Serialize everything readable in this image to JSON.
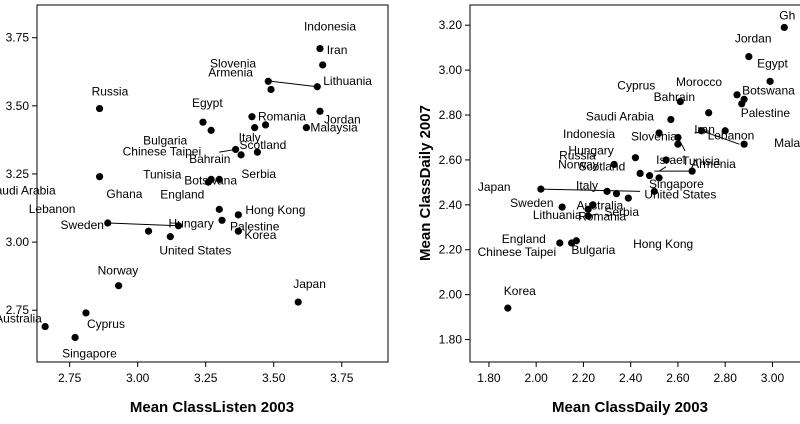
{
  "chart_data": [
    {
      "type": "scatter",
      "xlabel": "Mean ClassListen 2003",
      "ylabel": "",
      "xlim": [
        2.63,
        3.92
      ],
      "ylim": [
        2.56,
        3.87
      ],
      "xticks": [
        "2.75",
        "3.00",
        "3.25",
        "3.50",
        "3.75"
      ],
      "yticks": [
        "2.75",
        "3.00",
        "3.25",
        "3.50",
        "3.75"
      ],
      "grid": false,
      "points": [
        {
          "label": "Indonesia",
          "x": 3.67,
          "y": 3.71
        },
        {
          "label": "Iran",
          "x": 3.68,
          "y": 3.65
        },
        {
          "label": "Slovenia",
          "x": 3.49,
          "y": 3.56
        },
        {
          "label": "Armenia",
          "x": 3.48,
          "y": 3.59
        },
        {
          "label": "Lithuania",
          "x": 3.66,
          "y": 3.57
        },
        {
          "label": "Jordan",
          "x": 3.67,
          "y": 3.48
        },
        {
          "label": "Russia",
          "x": 2.86,
          "y": 3.49
        },
        {
          "label": "Egypt",
          "x": 3.24,
          "y": 3.44
        },
        {
          "label": "Romania",
          "x": 3.42,
          "y": 3.46
        },
        {
          "label": "Malaysia",
          "x": 3.62,
          "y": 3.42
        },
        {
          "label": "Bulgaria",
          "x": 3.27,
          "y": 3.41
        },
        {
          "label": "Italy",
          "x": 3.43,
          "y": 3.42
        },
        {
          "label": "Scotland",
          "x": 3.47,
          "y": 3.43
        },
        {
          "label": "Chinese Taipei",
          "x": 3.36,
          "y": 3.34
        },
        {
          "label": "Bahrain",
          "x": 3.38,
          "y": 3.32
        },
        {
          "label": "Serbia",
          "x": 3.44,
          "y": 3.33
        },
        {
          "label": "Saudi Arabia",
          "x": 2.86,
          "y": 3.24
        },
        {
          "label": "Tunisia",
          "x": 3.27,
          "y": 3.23
        },
        {
          "label": "Botswana",
          "x": 3.3,
          "y": 3.23
        },
        {
          "label": "Ghana",
          "x": 3.26,
          "y": 3.22
        },
        {
          "label": "England",
          "x": 3.3,
          "y": 3.12
        },
        {
          "label": "Lebanon",
          "x": 2.89,
          "y": 3.07
        },
        {
          "label": "Sweden",
          "x": 3.04,
          "y": 3.04
        },
        {
          "label": "Hungary",
          "x": 3.15,
          "y": 3.06
        },
        {
          "label": "Hong Kong",
          "x": 3.37,
          "y": 3.1
        },
        {
          "label": "Palestine",
          "x": 3.31,
          "y": 3.08
        },
        {
          "label": "Korea",
          "x": 3.37,
          "y": 3.04
        },
        {
          "label": "United States",
          "x": 3.12,
          "y": 3.02
        },
        {
          "label": "Norway",
          "x": 2.93,
          "y": 2.84
        },
        {
          "label": "Japan",
          "x": 3.59,
          "y": 2.78
        },
        {
          "label": "Australia",
          "x": 2.66,
          "y": 2.69
        },
        {
          "label": "Cyprus",
          "x": 2.81,
          "y": 2.74
        },
        {
          "label": "Singapore",
          "x": 2.77,
          "y": 2.65
        }
      ]
    },
    {
      "type": "scatter",
      "xlabel": "Mean ClassDaily 2003",
      "ylabel": "Mean ClassDaily 2007",
      "xlim": [
        1.72,
        3.18
      ],
      "ylim": [
        1.7,
        3.29
      ],
      "xticks": [
        "1.80",
        "2.00",
        "2.20",
        "2.40",
        "2.60",
        "2.80",
        "3.00",
        "3"
      ],
      "yticks": [
        "1.80",
        "2.00",
        "2.20",
        "2.40",
        "2.60",
        "2.80",
        "3.00",
        "3.20"
      ],
      "grid": false,
      "points": [
        {
          "label": "Gh",
          "x": 3.05,
          "y": 3.19
        },
        {
          "label": "Jordan",
          "x": 2.9,
          "y": 3.06
        },
        {
          "label": "Egypt",
          "x": 2.99,
          "y": 2.95
        },
        {
          "label": "Morocco",
          "x": 2.85,
          "y": 2.89
        },
        {
          "label": "Botswana",
          "x": 2.88,
          "y": 2.87
        },
        {
          "label": "Cyprus",
          "x": 2.61,
          "y": 2.86
        },
        {
          "label": "Bahrain",
          "x": 2.73,
          "y": 2.81
        },
        {
          "label": "Palestine",
          "x": 2.87,
          "y": 2.85
        },
        {
          "label": "Saudi Arabia",
          "x": 2.57,
          "y": 2.78
        },
        {
          "label": "Iran",
          "x": 2.8,
          "y": 2.73
        },
        {
          "label": "Lebanon",
          "x": 2.7,
          "y": 2.73
        },
        {
          "label": "Mala",
          "x": 2.88,
          "y": 2.67
        },
        {
          "label": "Indonesia",
          "x": 2.52,
          "y": 2.72
        },
        {
          "label": "Slovenia",
          "x": 2.6,
          "y": 2.7
        },
        {
          "label": "Tunisia",
          "x": 2.6,
          "y": 2.67
        },
        {
          "label": "Russia",
          "x": 2.33,
          "y": 2.58
        },
        {
          "label": "Hungary",
          "x": 2.42,
          "y": 2.61
        },
        {
          "label": "Israel",
          "x": 2.55,
          "y": 2.6
        },
        {
          "label": "Armenia",
          "x": 2.66,
          "y": 2.55
        },
        {
          "label": "Norway",
          "x": 2.44,
          "y": 2.54
        },
        {
          "label": "Scotland",
          "x": 2.48,
          "y": 2.53
        },
        {
          "label": "Singapore",
          "x": 2.52,
          "y": 2.52
        },
        {
          "label": "United States",
          "x": 2.5,
          "y": 2.46
        },
        {
          "label": "Japan",
          "x": 2.02,
          "y": 2.47
        },
        {
          "label": "Italy",
          "x": 2.3,
          "y": 2.46
        },
        {
          "label": "Australia",
          "x": 2.34,
          "y": 2.45
        },
        {
          "label": "Serbia",
          "x": 2.39,
          "y": 2.43
        },
        {
          "label": "Sweden",
          "x": 2.11,
          "y": 2.39
        },
        {
          "label": "Lithuania",
          "x": 2.24,
          "y": 2.4
        },
        {
          "label": "Romania",
          "x": 2.22,
          "y": 2.38
        },
        {
          "label": "Hong Kong",
          "x": 2.22,
          "y": 2.35
        },
        {
          "label": "England",
          "x": 2.1,
          "y": 2.23
        },
        {
          "label": "Chinese Taipei",
          "x": 2.15,
          "y": 2.23
        },
        {
          "label": "Bulgaria",
          "x": 2.17,
          "y": 2.24
        },
        {
          "label": "Korea",
          "x": 1.88,
          "y": 1.94
        }
      ]
    }
  ]
}
